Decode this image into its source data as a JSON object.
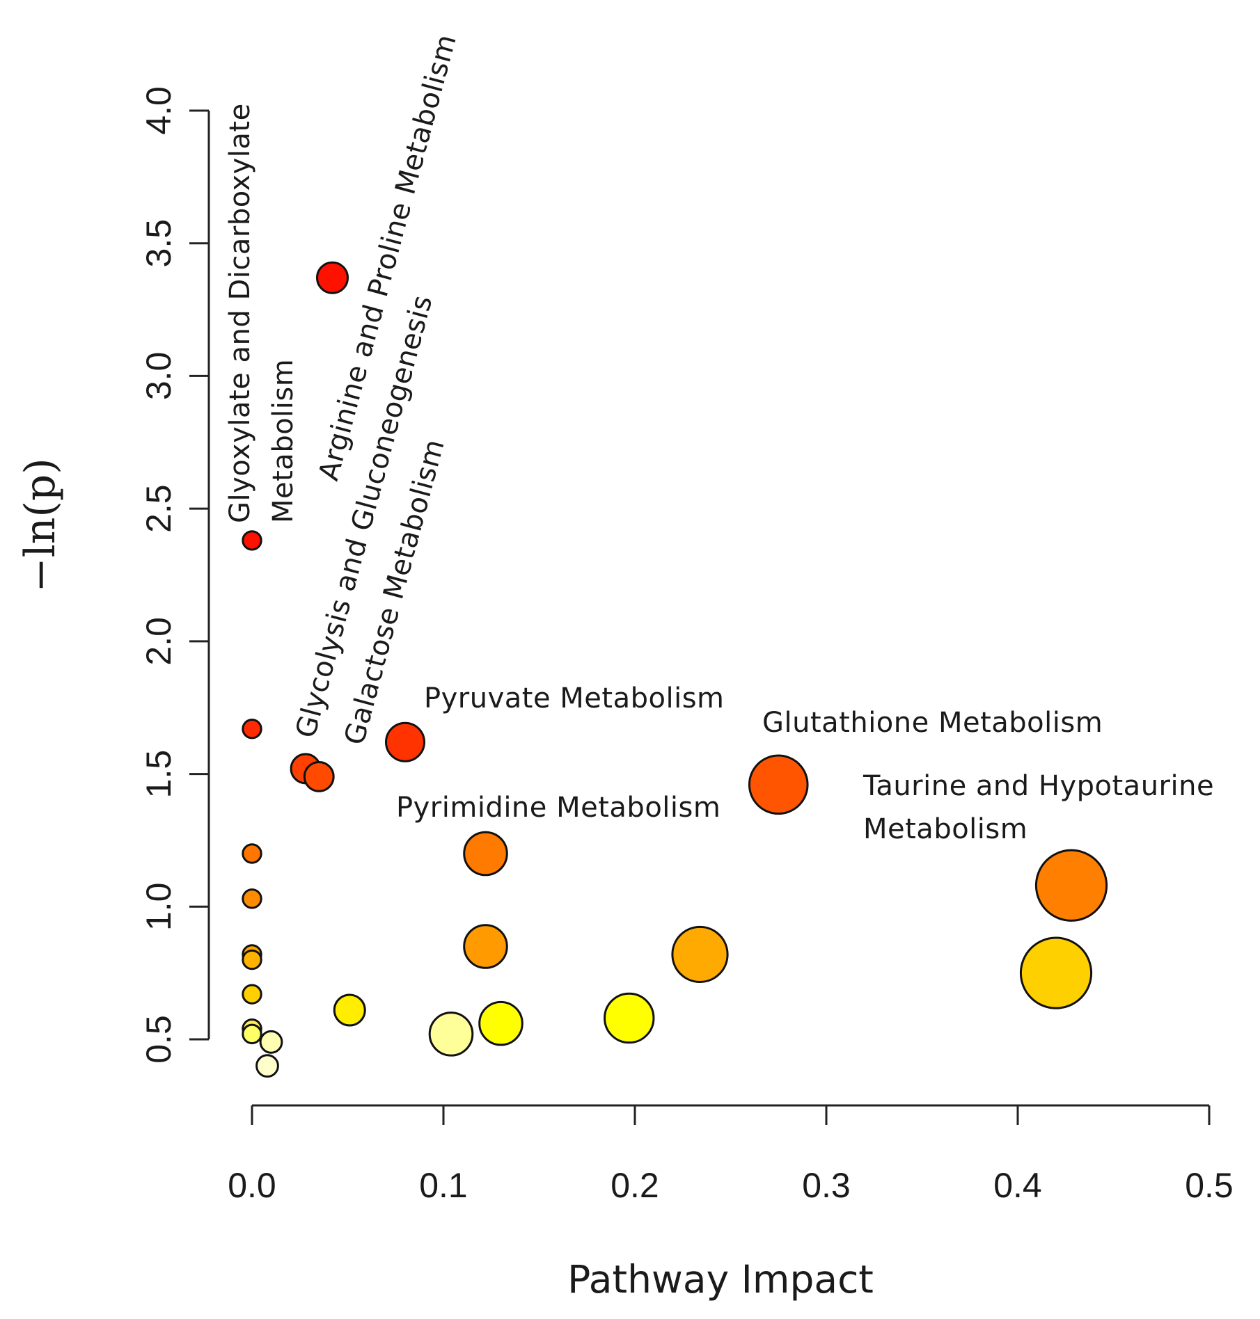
{
  "chart_data": {
    "type": "scatter",
    "xlabel": "Pathway Impact",
    "ylabel": "−ln(p)",
    "xlim": [
      0.0,
      0.5
    ],
    "ylim": [
      0.5,
      4.0
    ],
    "x_ticks": [
      "0.0",
      "0.1",
      "0.2",
      "0.3",
      "0.4",
      "0.5"
    ],
    "x_tick_values": [
      0.0,
      0.1,
      0.2,
      0.3,
      0.4,
      0.5
    ],
    "y_ticks": [
      "0.5",
      "1.0",
      "1.5",
      "2.0",
      "2.5",
      "3.0",
      "3.5",
      "4.0"
    ],
    "y_tick_values": [
      0.5,
      1.0,
      1.5,
      2.0,
      2.5,
      3.0,
      3.5,
      4.0
    ],
    "size_encoding": "pathway impact",
    "color_encoding": "-ln(p): red (high) to pale yellow (low)",
    "points": [
      {
        "x": 0.042,
        "y": 3.37,
        "color": "#ff1100",
        "size": 1.0
      },
      {
        "x": 0.0,
        "y": 2.38,
        "color": "#ff1100",
        "size": 0.6
      },
      {
        "x": 0.0,
        "y": 1.67,
        "color": "#ff2a00",
        "size": 0.6
      },
      {
        "x": 0.08,
        "y": 1.62,
        "color": "#ff3300",
        "size": 1.25
      },
      {
        "x": 0.028,
        "y": 1.52,
        "color": "#ff4000",
        "size": 0.95
      },
      {
        "x": 0.035,
        "y": 1.49,
        "color": "#ff4a00",
        "size": 0.95
      },
      {
        "x": 0.275,
        "y": 1.46,
        "color": "#ff5500",
        "size": 1.9
      },
      {
        "x": 0.122,
        "y": 1.2,
        "color": "#ff7a00",
        "size": 1.4
      },
      {
        "x": 0.0,
        "y": 1.2,
        "color": "#ff7700",
        "size": 0.6
      },
      {
        "x": 0.428,
        "y": 1.08,
        "color": "#ff8000",
        "size": 2.3
      },
      {
        "x": 0.0,
        "y": 1.03,
        "color": "#ff8c00",
        "size": 0.6
      },
      {
        "x": 0.122,
        "y": 0.85,
        "color": "#ff9a00",
        "size": 1.4
      },
      {
        "x": 0.234,
        "y": 0.82,
        "color": "#ffaa00",
        "size": 1.8
      },
      {
        "x": 0.0,
        "y": 0.82,
        "color": "#ffa500",
        "size": 0.6
      },
      {
        "x": 0.0,
        "y": 0.8,
        "color": "#ffb300",
        "size": 0.6
      },
      {
        "x": 0.42,
        "y": 0.75,
        "color": "#ffd000",
        "size": 2.3
      },
      {
        "x": 0.0,
        "y": 0.67,
        "color": "#ffd000",
        "size": 0.6
      },
      {
        "x": 0.051,
        "y": 0.61,
        "color": "#ffee00",
        "size": 1.0
      },
      {
        "x": 0.197,
        "y": 0.58,
        "color": "#ffff00",
        "size": 1.6
      },
      {
        "x": 0.13,
        "y": 0.56,
        "color": "#ffff00",
        "size": 1.4
      },
      {
        "x": 0.0,
        "y": 0.54,
        "color": "#ffee55",
        "size": 0.6
      },
      {
        "x": 0.104,
        "y": 0.52,
        "color": "#ffff99",
        "size": 1.4
      },
      {
        "x": 0.0,
        "y": 0.52,
        "color": "#ffff66",
        "size": 0.6
      },
      {
        "x": 0.01,
        "y": 0.49,
        "color": "#ffffb3",
        "size": 0.7
      },
      {
        "x": 0.008,
        "y": 0.4,
        "color": "#ffffcc",
        "size": 0.7
      }
    ],
    "annotations": [
      {
        "lines": [
          "Glyoxylate and Dicarboxylate",
          "Metabolism"
        ],
        "rotation": -90
      },
      {
        "lines": [
          "Arginine and Proline Metabolism"
        ],
        "rotation": -75
      },
      {
        "lines": [
          "Glycolysis and Gluconeogenesis"
        ],
        "rotation": -75
      },
      {
        "lines": [
          "Galactose Metabolism"
        ],
        "rotation": -75
      },
      {
        "lines": [
          "Pyruvate Metabolism"
        ],
        "rotation": 0
      },
      {
        "lines": [
          "Glutathione Metabolism"
        ],
        "rotation": 0
      },
      {
        "lines": [
          "Pyrimidine Metabolism"
        ],
        "rotation": 0
      },
      {
        "lines": [
          "Taurine and Hypotaurine",
          "Metabolism"
        ],
        "rotation": 0
      }
    ]
  }
}
